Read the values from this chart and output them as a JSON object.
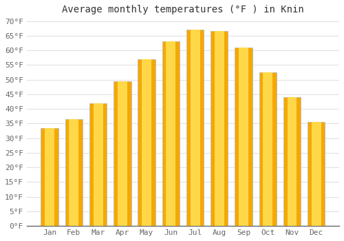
{
  "months": [
    "Jan",
    "Feb",
    "Mar",
    "Apr",
    "May",
    "Jun",
    "Jul",
    "Aug",
    "Sep",
    "Oct",
    "Nov",
    "Dec"
  ],
  "values": [
    33.5,
    36.5,
    42.0,
    49.5,
    57.0,
    63.0,
    67.0,
    66.5,
    61.0,
    52.5,
    44.0,
    35.5
  ],
  "bar_color_outer": "#F5A800",
  "bar_color_inner": "#FFD84A",
  "bar_edge_color": "#BBBBBB",
  "title": "Average monthly temperatures (°F ) in Knin",
  "ylim_min": 0,
  "ylim_max": 71,
  "ytick_step": 5,
  "background_color": "#FFFFFF",
  "grid_color": "#DDDDDD",
  "title_fontsize": 10,
  "tick_fontsize": 8
}
